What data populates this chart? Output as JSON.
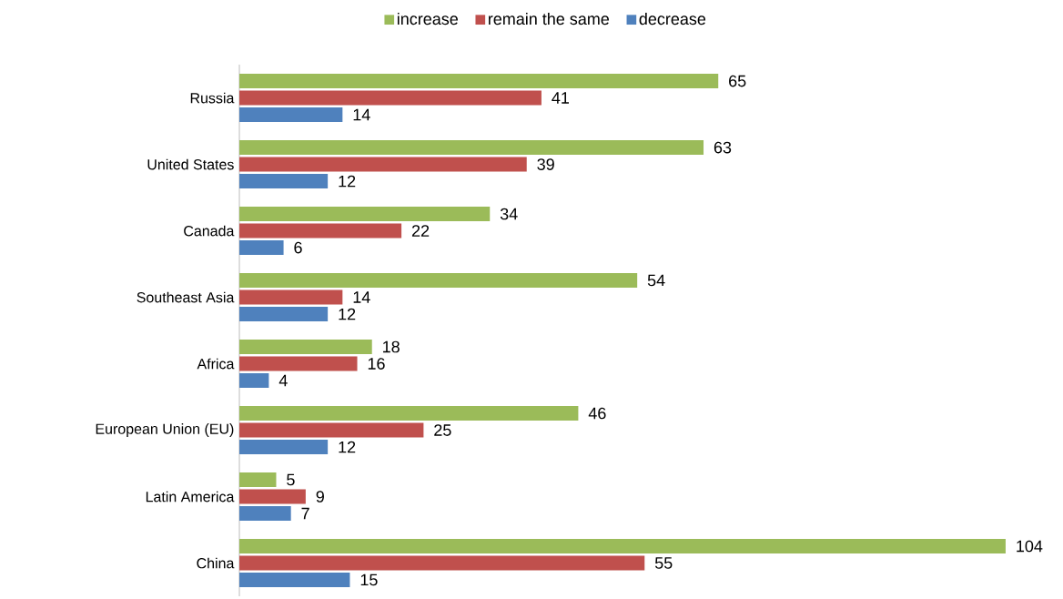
{
  "chart_data": {
    "type": "bar",
    "orientation": "horizontal",
    "categories": [
      "Russia",
      "United States",
      "Canada",
      "Southeast Asia",
      "Africa",
      "European Union (EU)",
      "Latin America",
      "China"
    ],
    "series": [
      {
        "name": "increase",
        "color": "#9bbb59",
        "values": [
          65,
          63,
          34,
          54,
          18,
          46,
          5,
          104
        ]
      },
      {
        "name": "remain the same",
        "color": "#c0504d",
        "values": [
          41,
          39,
          22,
          14,
          16,
          25,
          9,
          55
        ]
      },
      {
        "name": "decrease",
        "color": "#4f81bd",
        "values": [
          14,
          12,
          6,
          12,
          4,
          12,
          7,
          15
        ]
      }
    ],
    "data_labels": true,
    "legend": "top"
  }
}
